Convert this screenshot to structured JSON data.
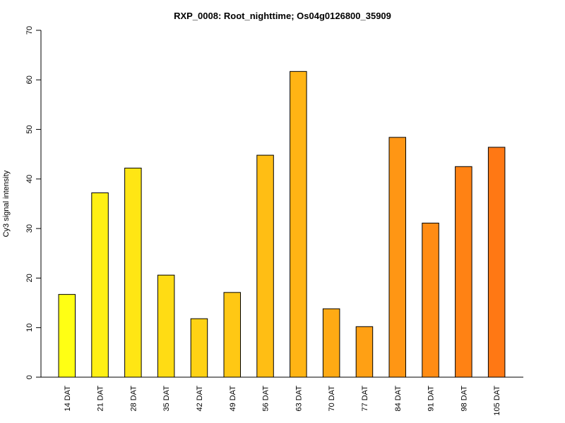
{
  "chart_data": {
    "type": "bar",
    "title": "RXP_0008: Root_nighttime; Os04g0126800_35909",
    "xlabel": "",
    "ylabel": "Cy3 signal intensity",
    "ylim": [
      0,
      70
    ],
    "yticks": [
      0,
      10,
      20,
      30,
      40,
      50,
      60,
      70
    ],
    "categories": [
      "14 DAT",
      "21 DAT",
      "28 DAT",
      "35 DAT",
      "42 DAT",
      "49 DAT",
      "56 DAT",
      "63 DAT",
      "70 DAT",
      "77 DAT",
      "84 DAT",
      "91 DAT",
      "98 DAT",
      "105 DAT"
    ],
    "values": [
      16.7,
      37.2,
      42.2,
      20.6,
      11.8,
      17.1,
      44.8,
      61.7,
      13.8,
      10.2,
      48.4,
      31.1,
      42.5,
      46.4
    ],
    "colors": [
      "#ffff14",
      "#fff014",
      "#ffe614",
      "#ffdc14",
      "#ffd214",
      "#ffc814",
      "#ffbe14",
      "#ffb414",
      "#ffaa14",
      "#ffa014",
      "#ff9614",
      "#ff8c14",
      "#ff8214",
      "#ff7814"
    ],
    "grid": false,
    "legend": "none"
  }
}
